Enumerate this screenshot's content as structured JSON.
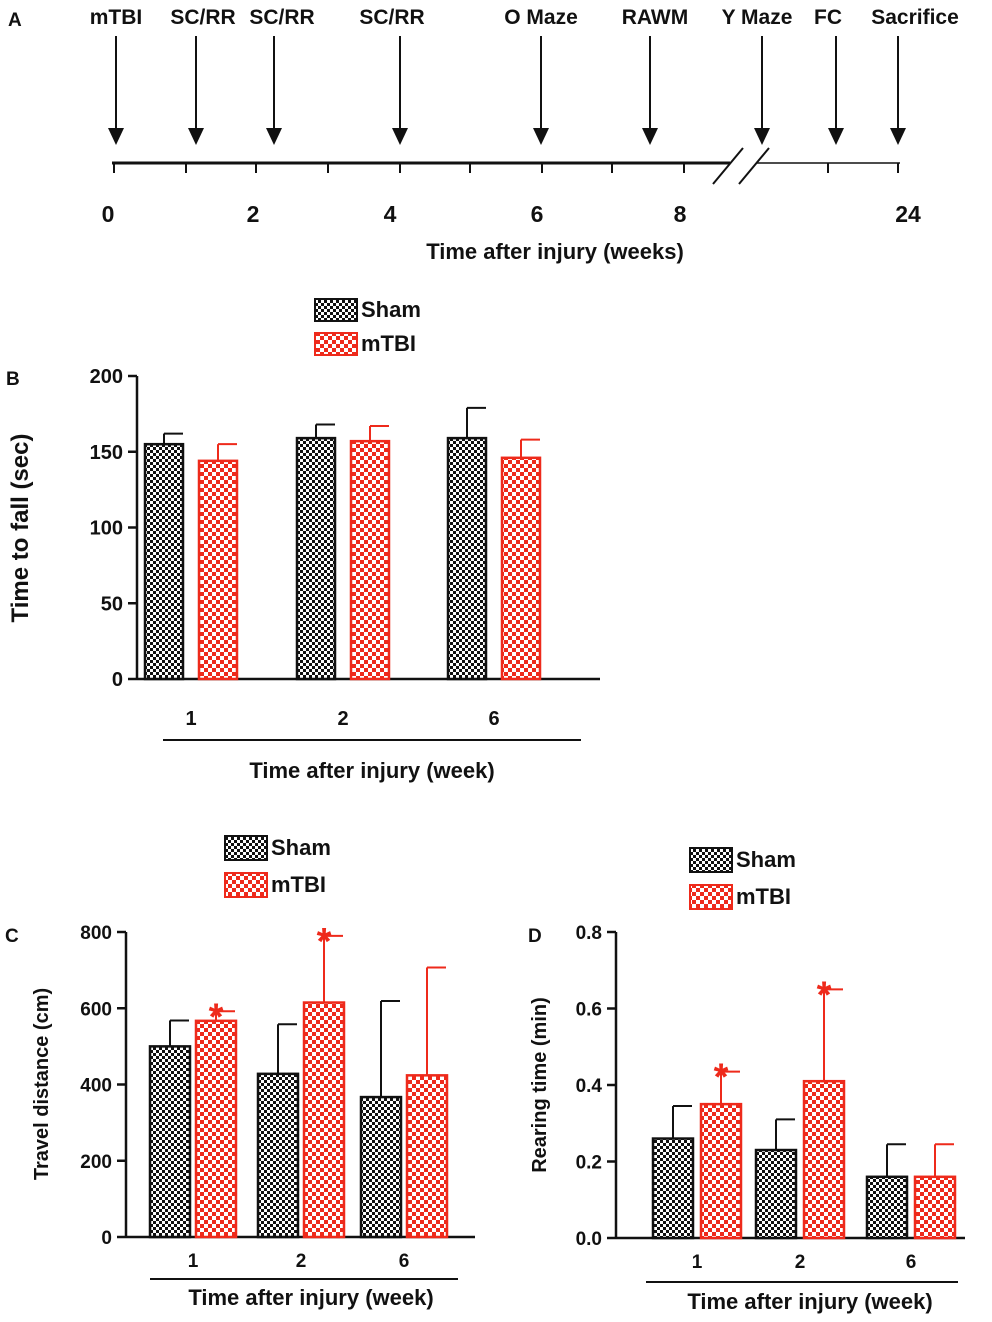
{
  "colors": {
    "sham": "#111111",
    "mtbi": "#ee2a1b",
    "axis": "#111111",
    "star": "#ee2a1b"
  },
  "timeline": {
    "panel_label": "A",
    "events": [
      "mTBI",
      "SC/RR",
      "SC/RR",
      "SC/RR",
      "O Maze",
      "RAWM",
      "Y Maze",
      "FC",
      "Sacrifice"
    ],
    "ticks": [
      "0",
      "2",
      "4",
      "6",
      "8",
      "24"
    ],
    "xlabel": "Time after injury (weeks)"
  },
  "chart_data": [
    {
      "id": "B",
      "panel_label": "B",
      "type": "bar",
      "categories": [
        "1",
        "2",
        "6"
      ],
      "series": [
        {
          "name": "Sham",
          "values": [
            155,
            159,
            159
          ],
          "errors": [
            7,
            9,
            20
          ]
        },
        {
          "name": "mTBI",
          "values": [
            144,
            157,
            146
          ],
          "errors": [
            11,
            10,
            12
          ]
        }
      ],
      "significance": [
        false,
        false,
        false
      ],
      "ylabel": "Time to fall (sec)",
      "xlabel": "Time after injury (week)",
      "ylim": [
        0,
        200
      ],
      "yticks": [
        "0",
        "50",
        "100",
        "150",
        "200"
      ],
      "legend": [
        "Sham",
        "mTBI"
      ],
      "legend_position": "top"
    },
    {
      "id": "C",
      "panel_label": "C",
      "type": "bar",
      "categories": [
        "1",
        "2",
        "6"
      ],
      "series": [
        {
          "name": "Sham",
          "values": [
            500,
            428,
            367
          ],
          "errors": [
            68,
            130,
            252
          ]
        },
        {
          "name": "mTBI",
          "values": [
            567,
            615,
            424
          ],
          "errors": [
            25,
            175,
            283
          ]
        }
      ],
      "significance": [
        true,
        true,
        false
      ],
      "ylabel": "Travel distance (cm)",
      "xlabel": "Time after injury (week)",
      "ylim": [
        0,
        800
      ],
      "yticks": [
        "0",
        "200",
        "400",
        "600",
        "800"
      ],
      "legend": [
        "Sham",
        "mTBI"
      ],
      "legend_position": "top"
    },
    {
      "id": "D",
      "panel_label": "D",
      "type": "bar",
      "categories": [
        "1",
        "2",
        "6"
      ],
      "series": [
        {
          "name": "Sham",
          "values": [
            0.26,
            0.23,
            0.16
          ],
          "errors": [
            0.085,
            0.08,
            0.085
          ]
        },
        {
          "name": "mTBI",
          "values": [
            0.35,
            0.41,
            0.16
          ],
          "errors": [
            0.085,
            0.24,
            0.085
          ]
        }
      ],
      "significance": [
        true,
        true,
        false
      ],
      "ylabel": "Rearing time (min)",
      "xlabel": "Time after injury (week)",
      "ylim": [
        0,
        0.8
      ],
      "yticks": [
        "0.0",
        "0.2",
        "0.4",
        "0.6",
        "0.8"
      ],
      "legend": [
        "Sham",
        "mTBI"
      ],
      "legend_position": "top"
    }
  ]
}
